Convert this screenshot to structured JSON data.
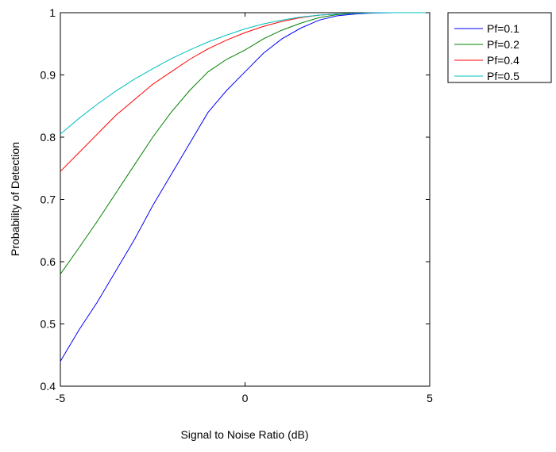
{
  "chart_data": {
    "type": "line",
    "xlabel": "Signal to Noise Ratio (dB)",
    "ylabel": "Probability of Detection",
    "xlim": [
      -5,
      5
    ],
    "ylim": [
      0.4,
      1
    ],
    "x_ticks": [
      -5,
      0,
      5
    ],
    "y_ticks": [
      0.4,
      0.5,
      0.6,
      0.7,
      0.8,
      0.9,
      1
    ],
    "x_tick_labels": [
      "-5",
      "0",
      "5"
    ],
    "y_tick_labels": [
      "0.4",
      "0.5",
      "0.6",
      "0.7",
      "0.8",
      "0.9",
      "1"
    ],
    "grid": false,
    "legend_position": "outside-top-right",
    "x": [
      -5,
      -4.5,
      -4,
      -3.5,
      -3,
      -2.5,
      -2,
      -1.5,
      -1,
      -0.5,
      0,
      0.5,
      1,
      1.5,
      2,
      2.5,
      3,
      3.5,
      4,
      4.5,
      5
    ],
    "series": [
      {
        "name": "Pf=0.1",
        "color": "#0000ff",
        "values": [
          0.44,
          0.49,
          0.535,
          0.585,
          0.635,
          0.69,
          0.74,
          0.79,
          0.84,
          0.875,
          0.905,
          0.935,
          0.958,
          0.975,
          0.988,
          0.995,
          0.998,
          0.9995,
          1.0,
          1.0,
          1.0
        ]
      },
      {
        "name": "Pf=0.2",
        "color": "#008000",
        "values": [
          0.58,
          0.622,
          0.665,
          0.71,
          0.755,
          0.8,
          0.84,
          0.875,
          0.905,
          0.925,
          0.94,
          0.958,
          0.972,
          0.983,
          0.992,
          0.997,
          0.999,
          1.0,
          1.0,
          1.0,
          1.0
        ]
      },
      {
        "name": "Pf=0.4",
        "color": "#ff0000",
        "values": [
          0.745,
          0.775,
          0.805,
          0.835,
          0.86,
          0.885,
          0.905,
          0.925,
          0.942,
          0.956,
          0.968,
          0.978,
          0.986,
          0.992,
          0.996,
          0.998,
          0.999,
          1.0,
          1.0,
          1.0,
          1.0
        ]
      },
      {
        "name": "Pf=0.5",
        "color": "#00bfbf",
        "values": [
          0.805,
          0.83,
          0.853,
          0.874,
          0.893,
          0.91,
          0.926,
          0.94,
          0.953,
          0.964,
          0.974,
          0.982,
          0.988,
          0.993,
          0.996,
          0.998,
          0.999,
          1.0,
          1.0,
          1.0,
          1.0
        ]
      }
    ]
  }
}
